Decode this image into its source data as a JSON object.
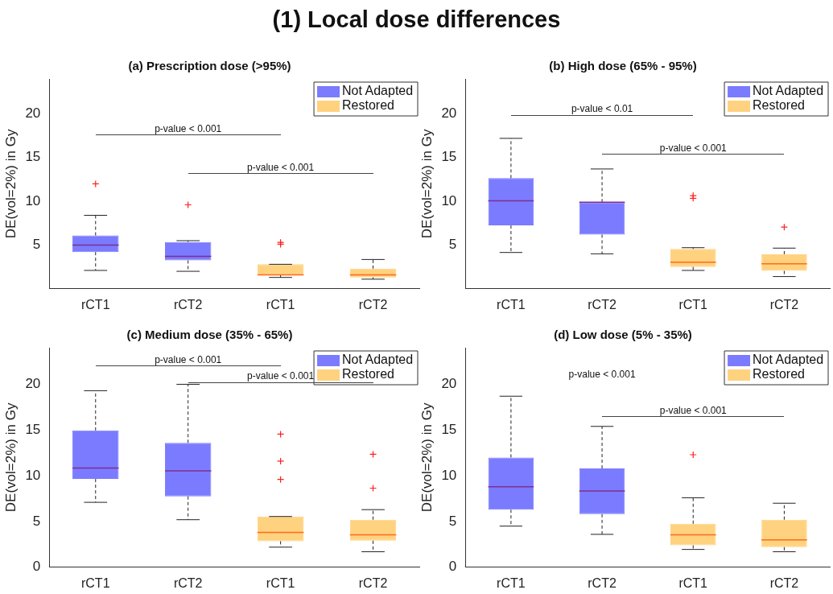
{
  "chart_data": [
    {
      "type": "other",
      "title": "(1) Local dose differences"
    },
    {
      "type": "box",
      "title": "(a) Prescription dose (>95%)",
      "ylabel": "DE(vol=2%) in Gy",
      "categories": [
        "rCT1",
        "rCT2",
        "rCT1",
        "rCT2"
      ],
      "ylim": [
        0,
        24
      ],
      "yticks": [
        5,
        10,
        15,
        20
      ],
      "legend": "top right",
      "annotations": [
        "p-value < 0.001",
        "p-value < 0.001"
      ],
      "series": [
        {
          "name": "Not Adapted",
          "color": "#7b7bff",
          "boxes": [
            {
              "low": 2.1,
              "q1": 4.2,
              "median": 5.0,
              "q3": 6.1,
              "high": 8.4,
              "outliers": [
                12.0
              ]
            },
            {
              "low": 2.0,
              "q1": 3.25,
              "median": 3.7,
              "q3": 5.35,
              "high": 5.5,
              "outliers": [
                9.6
              ]
            },
            null,
            null
          ]
        },
        {
          "name": "Restored",
          "color": "#ffd280",
          "boxes": [
            null,
            null,
            {
              "low": 1.3,
              "q1": 1.55,
              "median": 1.6,
              "q3": 2.8,
              "high": 2.8,
              "outliers": [
                5.1,
                5.3
              ]
            },
            {
              "low": 1.1,
              "q1": 1.3,
              "median": 1.6,
              "q3": 2.3,
              "high": 3.35
            }
          ]
        }
      ]
    },
    {
      "type": "box",
      "title": "(b) High dose (65% - 95%)",
      "ylabel": "DE(vol=2%) in Gy",
      "categories": [
        "rCT1",
        "rCT2",
        "rCT1",
        "rCT2"
      ],
      "ylim": [
        0,
        24
      ],
      "yticks": [
        5,
        10,
        15,
        20
      ],
      "legend": "top right",
      "annotations": [
        "p-value < 0.01",
        "p-value < 0.001"
      ],
      "series": [
        {
          "name": "Not Adapted",
          "color": "#7b7bff",
          "boxes": [
            {
              "low": 4.15,
              "q1": 7.25,
              "median": 10.05,
              "q3": 12.65,
              "high": 17.2
            },
            {
              "low": 4.0,
              "q1": 6.2,
              "median": 9.9,
              "q3": 9.9,
              "high": 13.7
            },
            null,
            null
          ]
        },
        {
          "name": "Restored",
          "color": "#ffd280",
          "boxes": [
            null,
            null,
            {
              "low": 2.1,
              "q1": 2.5,
              "median": 3.05,
              "q3": 4.55,
              "high": 4.7,
              "outliers": [
                10.35,
                10.65
              ]
            },
            {
              "low": 1.4,
              "q1": 2.05,
              "median": 2.85,
              "q3": 3.95,
              "high": 4.65,
              "outliers": [
                7.05
              ]
            }
          ]
        }
      ]
    },
    {
      "type": "box",
      "title": "(c) Medium dose (35% - 65%)",
      "ylabel": "DE(vol=2%) in Gy",
      "categories": [
        "rCT1",
        "rCT2",
        "rCT1",
        "rCT2"
      ],
      "ylim": [
        0,
        24
      ],
      "yticks": [
        0,
        5,
        10,
        15,
        20
      ],
      "legend": "top right",
      "annotations": [
        "p-value < 0.001",
        "p-value < 0.001"
      ],
      "series": [
        {
          "name": "Not Adapted",
          "color": "#7b7bff",
          "boxes": [
            {
              "low": 7.1,
              "q1": 9.65,
              "median": 10.85,
              "q3": 14.95,
              "high": 19.3
            },
            {
              "low": 5.2,
              "q1": 7.75,
              "median": 10.55,
              "q3": 13.6,
              "high": 20.0
            },
            null,
            null
          ]
        },
        {
          "name": "Restored",
          "color": "#ffd280",
          "boxes": [
            null,
            null,
            {
              "low": 2.2,
              "q1": 2.85,
              "median": 3.8,
              "q3": 5.55,
              "high": 5.55,
              "outliers": [
                9.6,
                11.6,
                14.55
              ]
            },
            {
              "low": 1.7,
              "q1": 2.9,
              "median": 3.55,
              "q3": 5.2,
              "high": 6.3,
              "outliers": [
                8.65,
                12.35
              ]
            }
          ]
        }
      ]
    },
    {
      "type": "box",
      "title": "(d) Low dose (5% - 35%)",
      "ylabel": "DE(vol=2%) in Gy",
      "categories": [
        "rCT1",
        "rCT2",
        "rCT1",
        "rCT2"
      ],
      "ylim": [
        0,
        24
      ],
      "yticks": [
        0,
        5,
        10,
        15,
        20
      ],
      "legend": "top right",
      "annotations": [
        "p-value < 0.001",
        "p-value < 0.001"
      ],
      "series": [
        {
          "name": "Not Adapted",
          "color": "#7b7bff",
          "boxes": [
            {
              "low": 4.5,
              "q1": 6.3,
              "median": 8.8,
              "q3": 12.0,
              "high": 18.7
            },
            {
              "low": 3.6,
              "q1": 5.8,
              "median": 8.35,
              "q3": 10.8,
              "high": 15.4
            },
            null,
            null
          ]
        },
        {
          "name": "Restored",
          "color": "#ffd280",
          "boxes": [
            null,
            null,
            {
              "low": 1.95,
              "q1": 2.4,
              "median": 3.55,
              "q3": 4.75,
              "high": 7.6,
              "outliers": [
                12.3
              ]
            },
            {
              "low": 1.7,
              "q1": 2.2,
              "median": 3.0,
              "q3": 5.2,
              "high": 7.0
            }
          ]
        }
      ]
    }
  ]
}
